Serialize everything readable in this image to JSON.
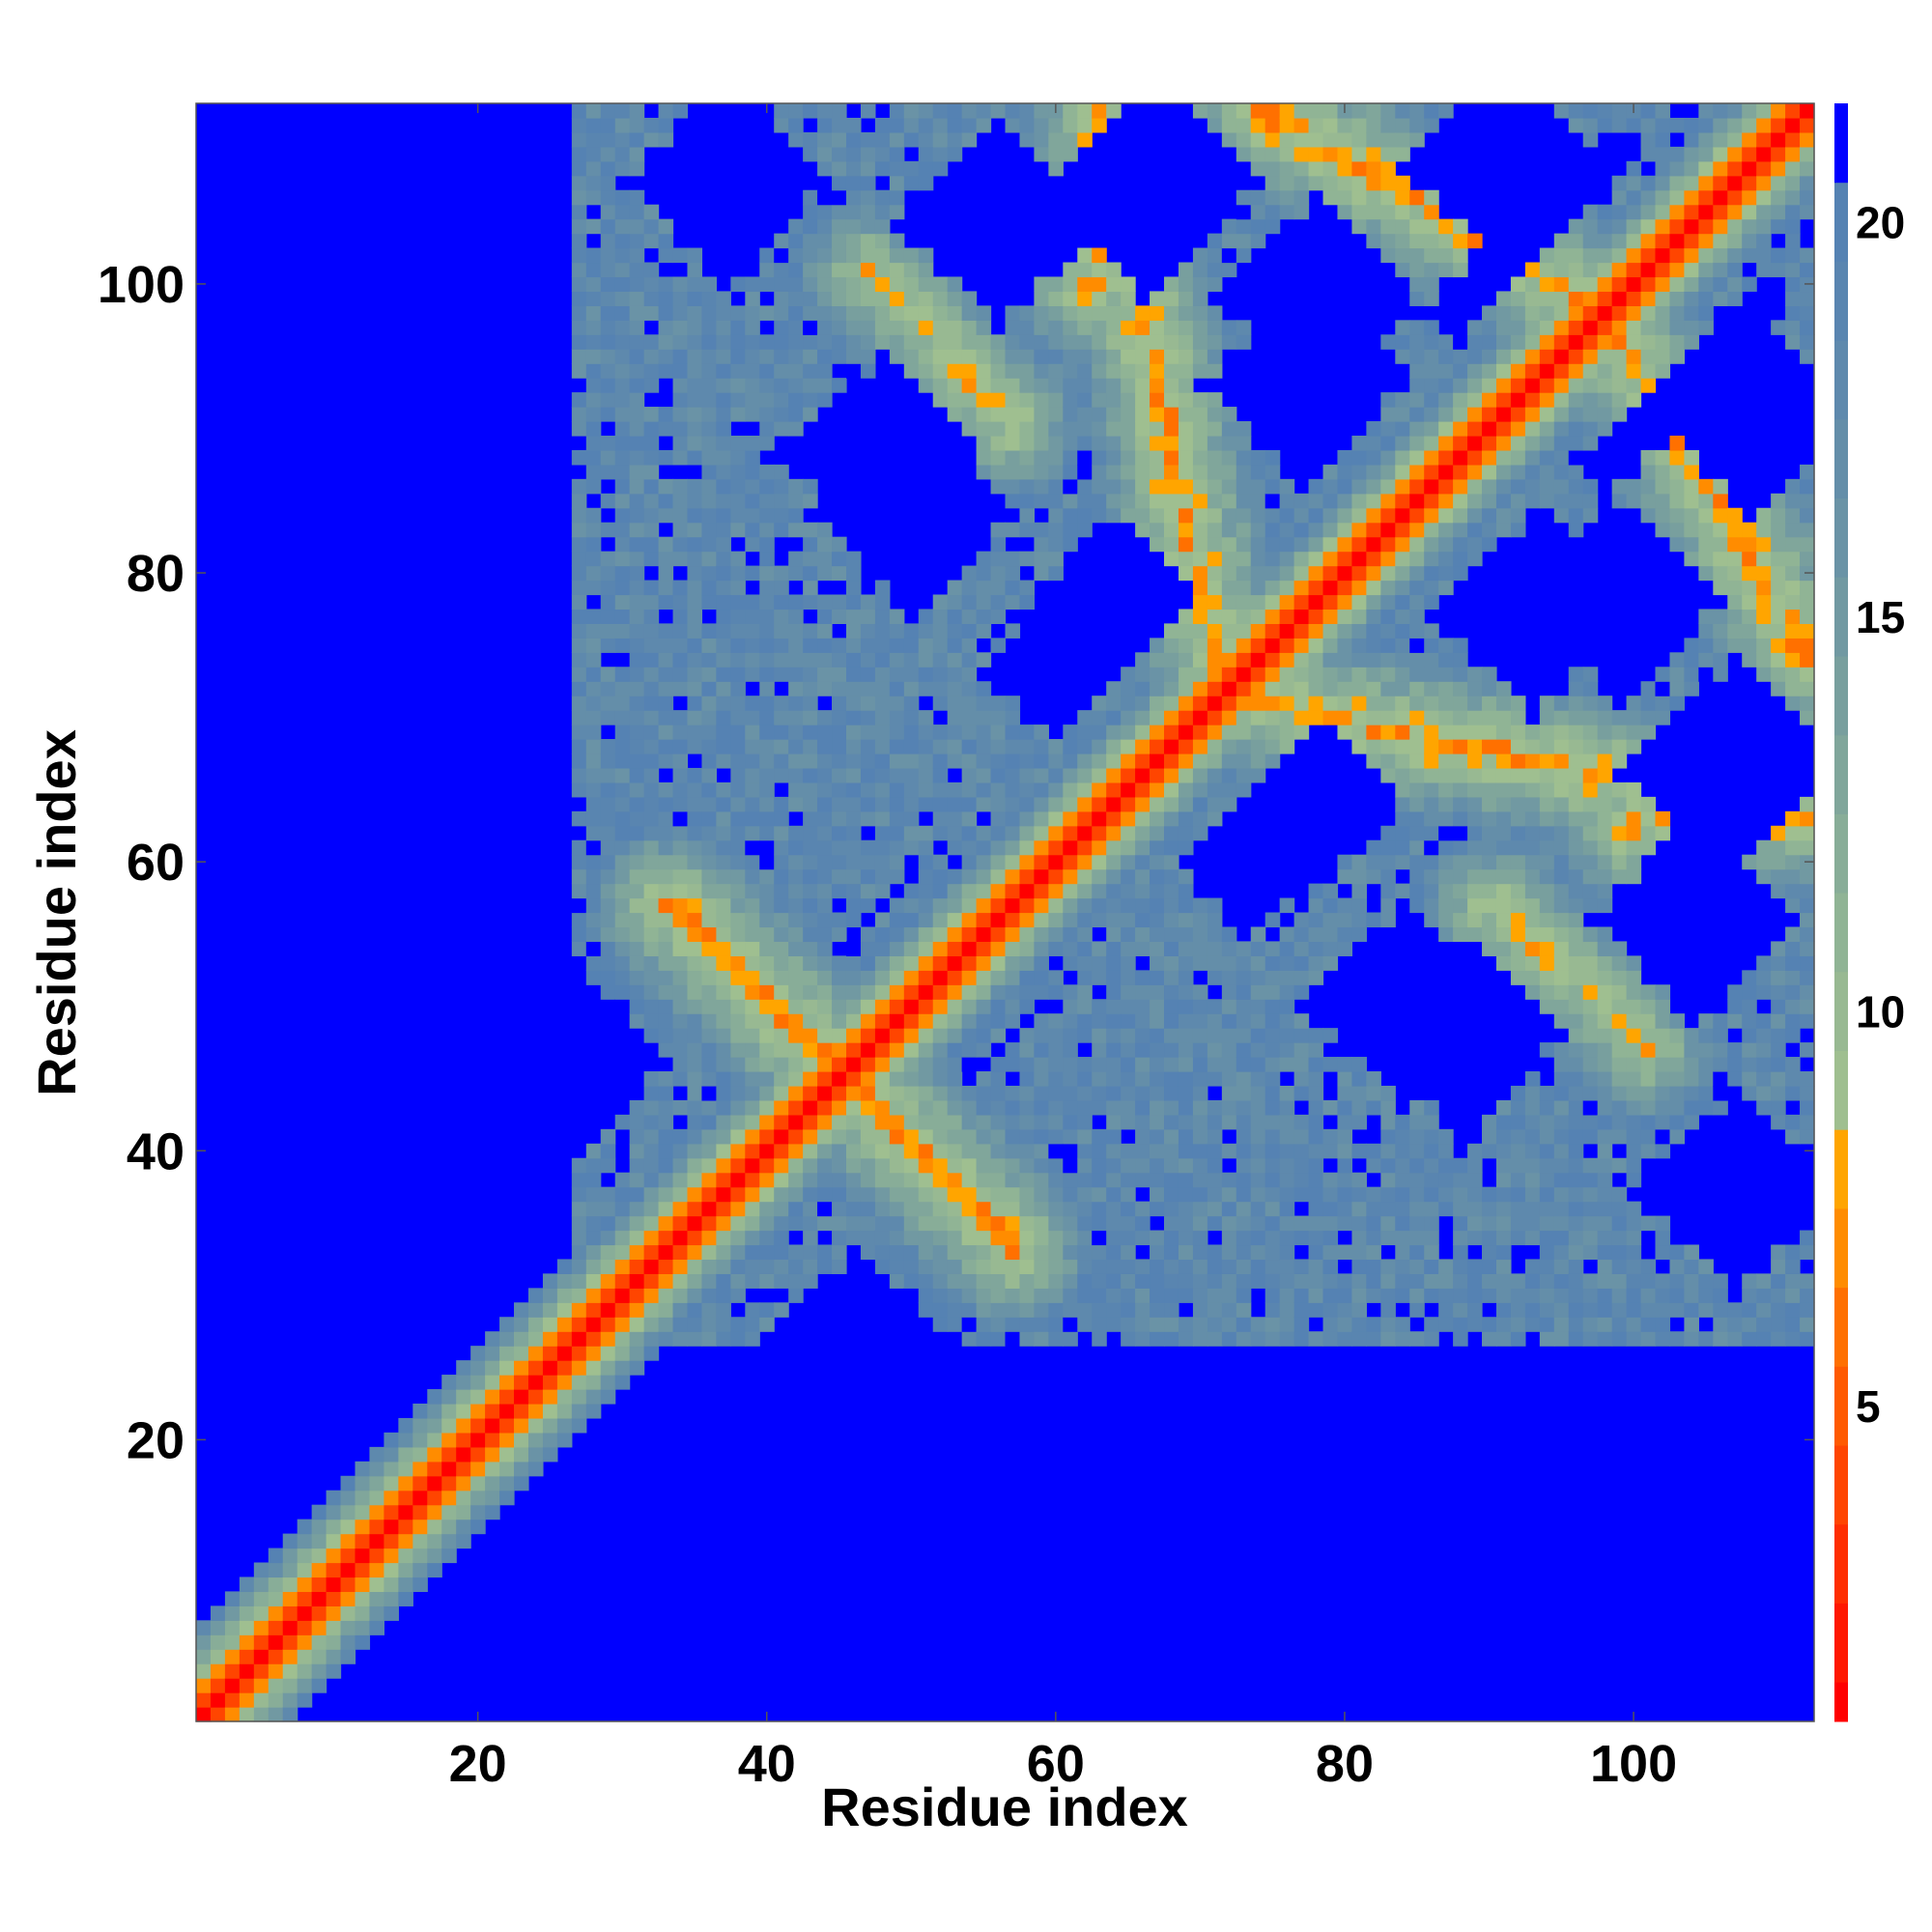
{
  "chart_data": {
    "type": "heatmap",
    "title": "",
    "xlabel": "Residue index",
    "ylabel": "Residue index",
    "xlim": [
      0.5,
      112.5
    ],
    "ylim": [
      0.5,
      112.5
    ],
    "x_ticks": [
      20,
      40,
      60,
      80,
      100
    ],
    "y_ticks": [
      20,
      40,
      60,
      80,
      100
    ],
    "colorbar": {
      "range": [
        1,
        21.5
      ],
      "ticks": [
        5,
        10,
        15,
        20
      ],
      "bins": [
        {
          "max": 1.5,
          "color": "#ff0000"
        },
        {
          "max": 2.5,
          "color": "#ff1800"
        },
        {
          "max": 3.5,
          "color": "#ff2e00"
        },
        {
          "max": 4.5,
          "color": "#ff4500"
        },
        {
          "max": 5.5,
          "color": "#ff5a00"
        },
        {
          "max": 6.5,
          "color": "#ff7000"
        },
        {
          "max": 7.5,
          "color": "#ff8c00"
        },
        {
          "max": 8.5,
          "color": "#ffa500"
        },
        {
          "max": 9.5,
          "color": "#9fbf90"
        },
        {
          "max": 10.5,
          "color": "#98b992"
        },
        {
          "max": 11.5,
          "color": "#90b495"
        },
        {
          "max": 12.5,
          "color": "#88ad98"
        },
        {
          "max": 13.5,
          "color": "#80a69b"
        },
        {
          "max": 14.5,
          "color": "#789f9e"
        },
        {
          "max": 15.5,
          "color": "#7199a2"
        },
        {
          "max": 16.5,
          "color": "#6a93a6"
        },
        {
          "max": 17.5,
          "color": "#648ea9"
        },
        {
          "max": 18.5,
          "color": "#5e89ad"
        },
        {
          "max": 19.5,
          "color": "#5985b0"
        },
        {
          "max": 20.5,
          "color": "#5582b3"
        },
        {
          "max": 21.5,
          "color": "#0000ff"
        }
      ]
    },
    "matrix": {
      "n": 112,
      "description_of_values": "Symmetric residue-residue distance map; low values along the diagonal, parallel/antiparallel contact stripes between residue segments.",
      "diagonal_value": 1,
      "near_diagonal_profile": [
        1,
        4,
        7,
        10,
        13,
        16,
        19
      ],
      "background_value": 21.5,
      "contact_stripes": [
        {
          "kind": "antiparallel",
          "i_range": [
            33,
            44
          ],
          "j_range": [
            46,
            57
          ],
          "value": 7
        },
        {
          "kind": "antiparallel",
          "i_range": [
            63,
            71
          ],
          "j_range": [
            74,
            112
          ],
          "value": 7
        },
        {
          "kind": "antiparallel",
          "i_range": [
            74,
            96
          ],
          "j_range": [
            99,
            112
          ],
          "value": 7
        },
        {
          "kind": "antiparallel",
          "i_range": [
            47,
            57
          ],
          "j_range": [
            90,
            101
          ],
          "value": 8
        },
        {
          "kind": "parallel",
          "i_range": [
            62,
            68
          ],
          "j_range": [
            99,
            111
          ],
          "value": 8
        }
      ],
      "blue_pockets": [
        [
          46,
          26
        ],
        [
          52,
          54
        ],
        [
          48,
          88
        ],
        [
          62,
          73
        ],
        [
          56,
          104
        ],
        [
          77,
          64
        ],
        [
          78,
          99
        ],
        [
          84,
          50
        ],
        [
          93,
          77
        ],
        [
          98,
          92
        ],
        [
          66,
          106
        ],
        [
          107,
          37
        ],
        [
          107,
          67
        ],
        [
          104,
          99
        ],
        [
          91,
          108
        ]
      ]
    }
  }
}
